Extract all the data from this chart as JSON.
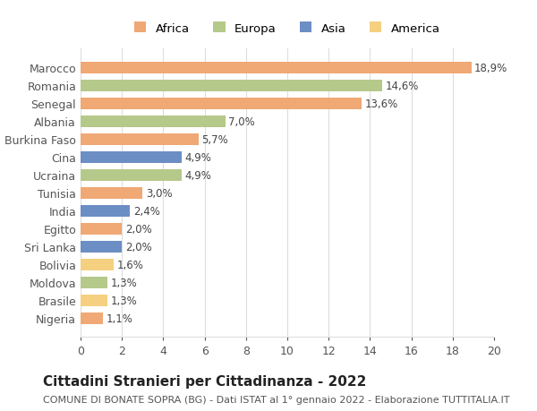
{
  "countries": [
    "Nigeria",
    "Brasile",
    "Moldova",
    "Bolivia",
    "Sri Lanka",
    "Egitto",
    "India",
    "Tunisia",
    "Ucraina",
    "Cina",
    "Burkina Faso",
    "Albania",
    "Senegal",
    "Romania",
    "Marocco"
  ],
  "values": [
    1.1,
    1.3,
    1.3,
    1.6,
    2.0,
    2.0,
    2.4,
    3.0,
    4.9,
    4.9,
    5.7,
    7.0,
    13.6,
    14.6,
    18.9
  ],
  "labels": [
    "1,1%",
    "1,3%",
    "1,3%",
    "1,6%",
    "2,0%",
    "2,0%",
    "2,4%",
    "3,0%",
    "4,9%",
    "4,9%",
    "5,7%",
    "7,0%",
    "13,6%",
    "14,6%",
    "18,9%"
  ],
  "continents": [
    "Africa",
    "America",
    "Europa",
    "America",
    "Asia",
    "Africa",
    "Asia",
    "Africa",
    "Europa",
    "Asia",
    "Africa",
    "Europa",
    "Africa",
    "Europa",
    "Africa"
  ],
  "colors": {
    "Africa": "#F0A875",
    "Europa": "#B5C98A",
    "Asia": "#6B8EC4",
    "America": "#F5D080"
  },
  "legend_order": [
    "Africa",
    "Europa",
    "Asia",
    "America"
  ],
  "title": "Cittadini Stranieri per Cittadinanza - 2022",
  "subtitle": "COMUNE DI BONATE SOPRA (BG) - Dati ISTAT al 1° gennaio 2022 - Elaborazione TUTTITALIA.IT",
  "xlim": [
    0,
    20
  ],
  "xticks": [
    0,
    2,
    4,
    6,
    8,
    10,
    12,
    14,
    16,
    18,
    20
  ],
  "background_color": "#ffffff",
  "grid_color": "#dddddd",
  "bar_height": 0.65,
  "label_fontsize": 8.5,
  "title_fontsize": 11,
  "subtitle_fontsize": 8,
  "tick_fontsize": 9,
  "legend_fontsize": 9.5
}
